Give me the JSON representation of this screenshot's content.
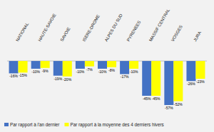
{
  "chart_data": {
    "type": "bar",
    "categories": [
      "NATIONAL",
      "HAUTE-SAVOIE",
      "SAVOIE",
      "ISERE-DROME",
      "ALPES DU SUD",
      "PYRENEES",
      "MASSIF CENTRAL",
      "VOSGES",
      "JURA"
    ],
    "series": [
      {
        "name": "Par rapport à l'an dernier",
        "color": "#4472C4",
        "values": [
          -16,
          -10,
          -19,
          -10,
          -10,
          -17,
          -45,
          -57,
          -26
        ],
        "value_labels": [
          "-16%",
          "-10%",
          "-19%",
          "-10%",
          "-10%",
          "-17%",
          "-45%",
          "-57%",
          "-26%"
        ]
      },
      {
        "name": "Par rapport à la moyenne des 4 derniers hivers",
        "color": "#FFFF00",
        "values": [
          -15,
          -9,
          -20,
          -7,
          -8,
          -10,
          -45,
          -52,
          -23
        ],
        "value_labels": [
          "-15%",
          "-9%",
          "-20%",
          "-7%",
          "-8%",
          "-10%",
          "-45%",
          "-52%",
          "-23%"
        ]
      }
    ],
    "ylim": [
      -68,
      22
    ],
    "yticks": [
      0
    ],
    "grid": true,
    "tick_labels": "x",
    "data_labels": true,
    "legend": "lower left"
  }
}
